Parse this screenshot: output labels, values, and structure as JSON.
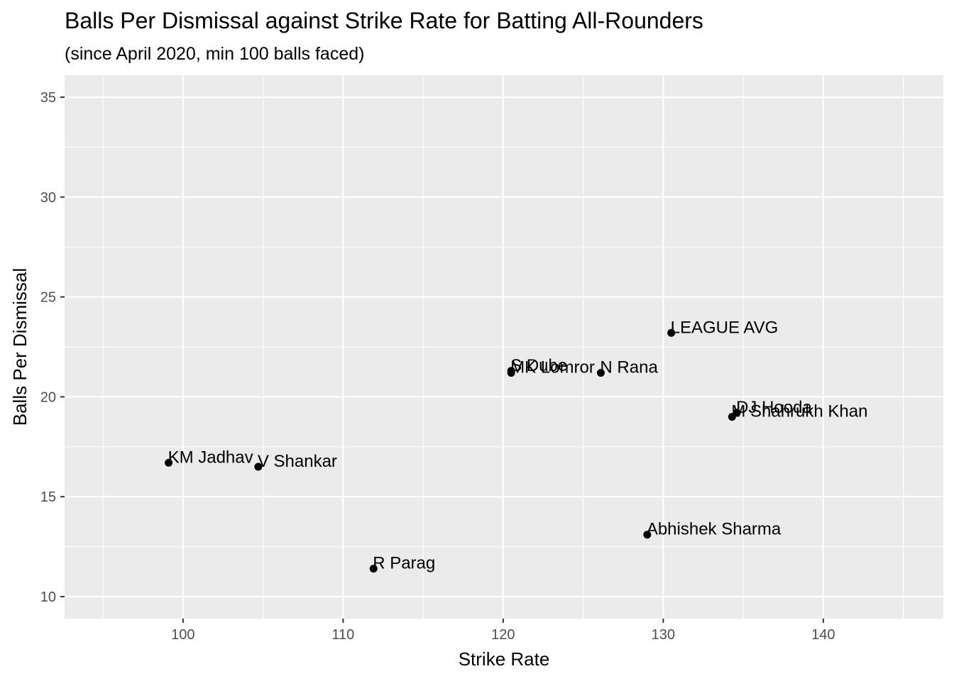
{
  "chart_data": {
    "type": "scatter",
    "title": "Balls Per Dismissal against Strike Rate for Batting All-Rounders",
    "subtitle": "(since April 2020, min 100 balls faced)",
    "xlabel": "Strike Rate",
    "ylabel": "Balls Per Dismissal",
    "xlim": [
      92.6,
      147.5
    ],
    "ylim": [
      8.9,
      36.1
    ],
    "x_ticks": [
      100,
      110,
      120,
      130,
      140
    ],
    "y_ticks": [
      10,
      15,
      20,
      25,
      30,
      35
    ],
    "x_minor_ticks": [
      95,
      105,
      115,
      125,
      135,
      145
    ],
    "y_minor_ticks": [
      12.5,
      17.5,
      22.5,
      27.5,
      32.5
    ],
    "grid": true,
    "legend": "none",
    "points": [
      {
        "label": "LEAGUE AVG",
        "x": 130.5,
        "y": 23.2
      },
      {
        "label": "S Dube",
        "x": 120.5,
        "y": 21.3
      },
      {
        "label": "MK Lomror",
        "x": 120.5,
        "y": 21.2
      },
      {
        "label": "N Rana",
        "x": 126.1,
        "y": 21.2
      },
      {
        "label": "DJ Hooda",
        "x": 134.6,
        "y": 19.2
      },
      {
        "label": "M Shahrukh Khan",
        "x": 134.3,
        "y": 19.0
      },
      {
        "label": "KM Jadhav",
        "x": 99.1,
        "y": 16.7
      },
      {
        "label": "V Shankar",
        "x": 104.7,
        "y": 16.5
      },
      {
        "label": "Abhishek Sharma",
        "x": 129.0,
        "y": 13.1
      },
      {
        "label": "R Parag",
        "x": 111.9,
        "y": 11.4
      }
    ]
  },
  "colors": {
    "panel_background": "#ebebeb",
    "grid_major": "#ffffff",
    "point": "#000000",
    "tick": "#333333",
    "tick_label": "#4d4d4d"
  }
}
